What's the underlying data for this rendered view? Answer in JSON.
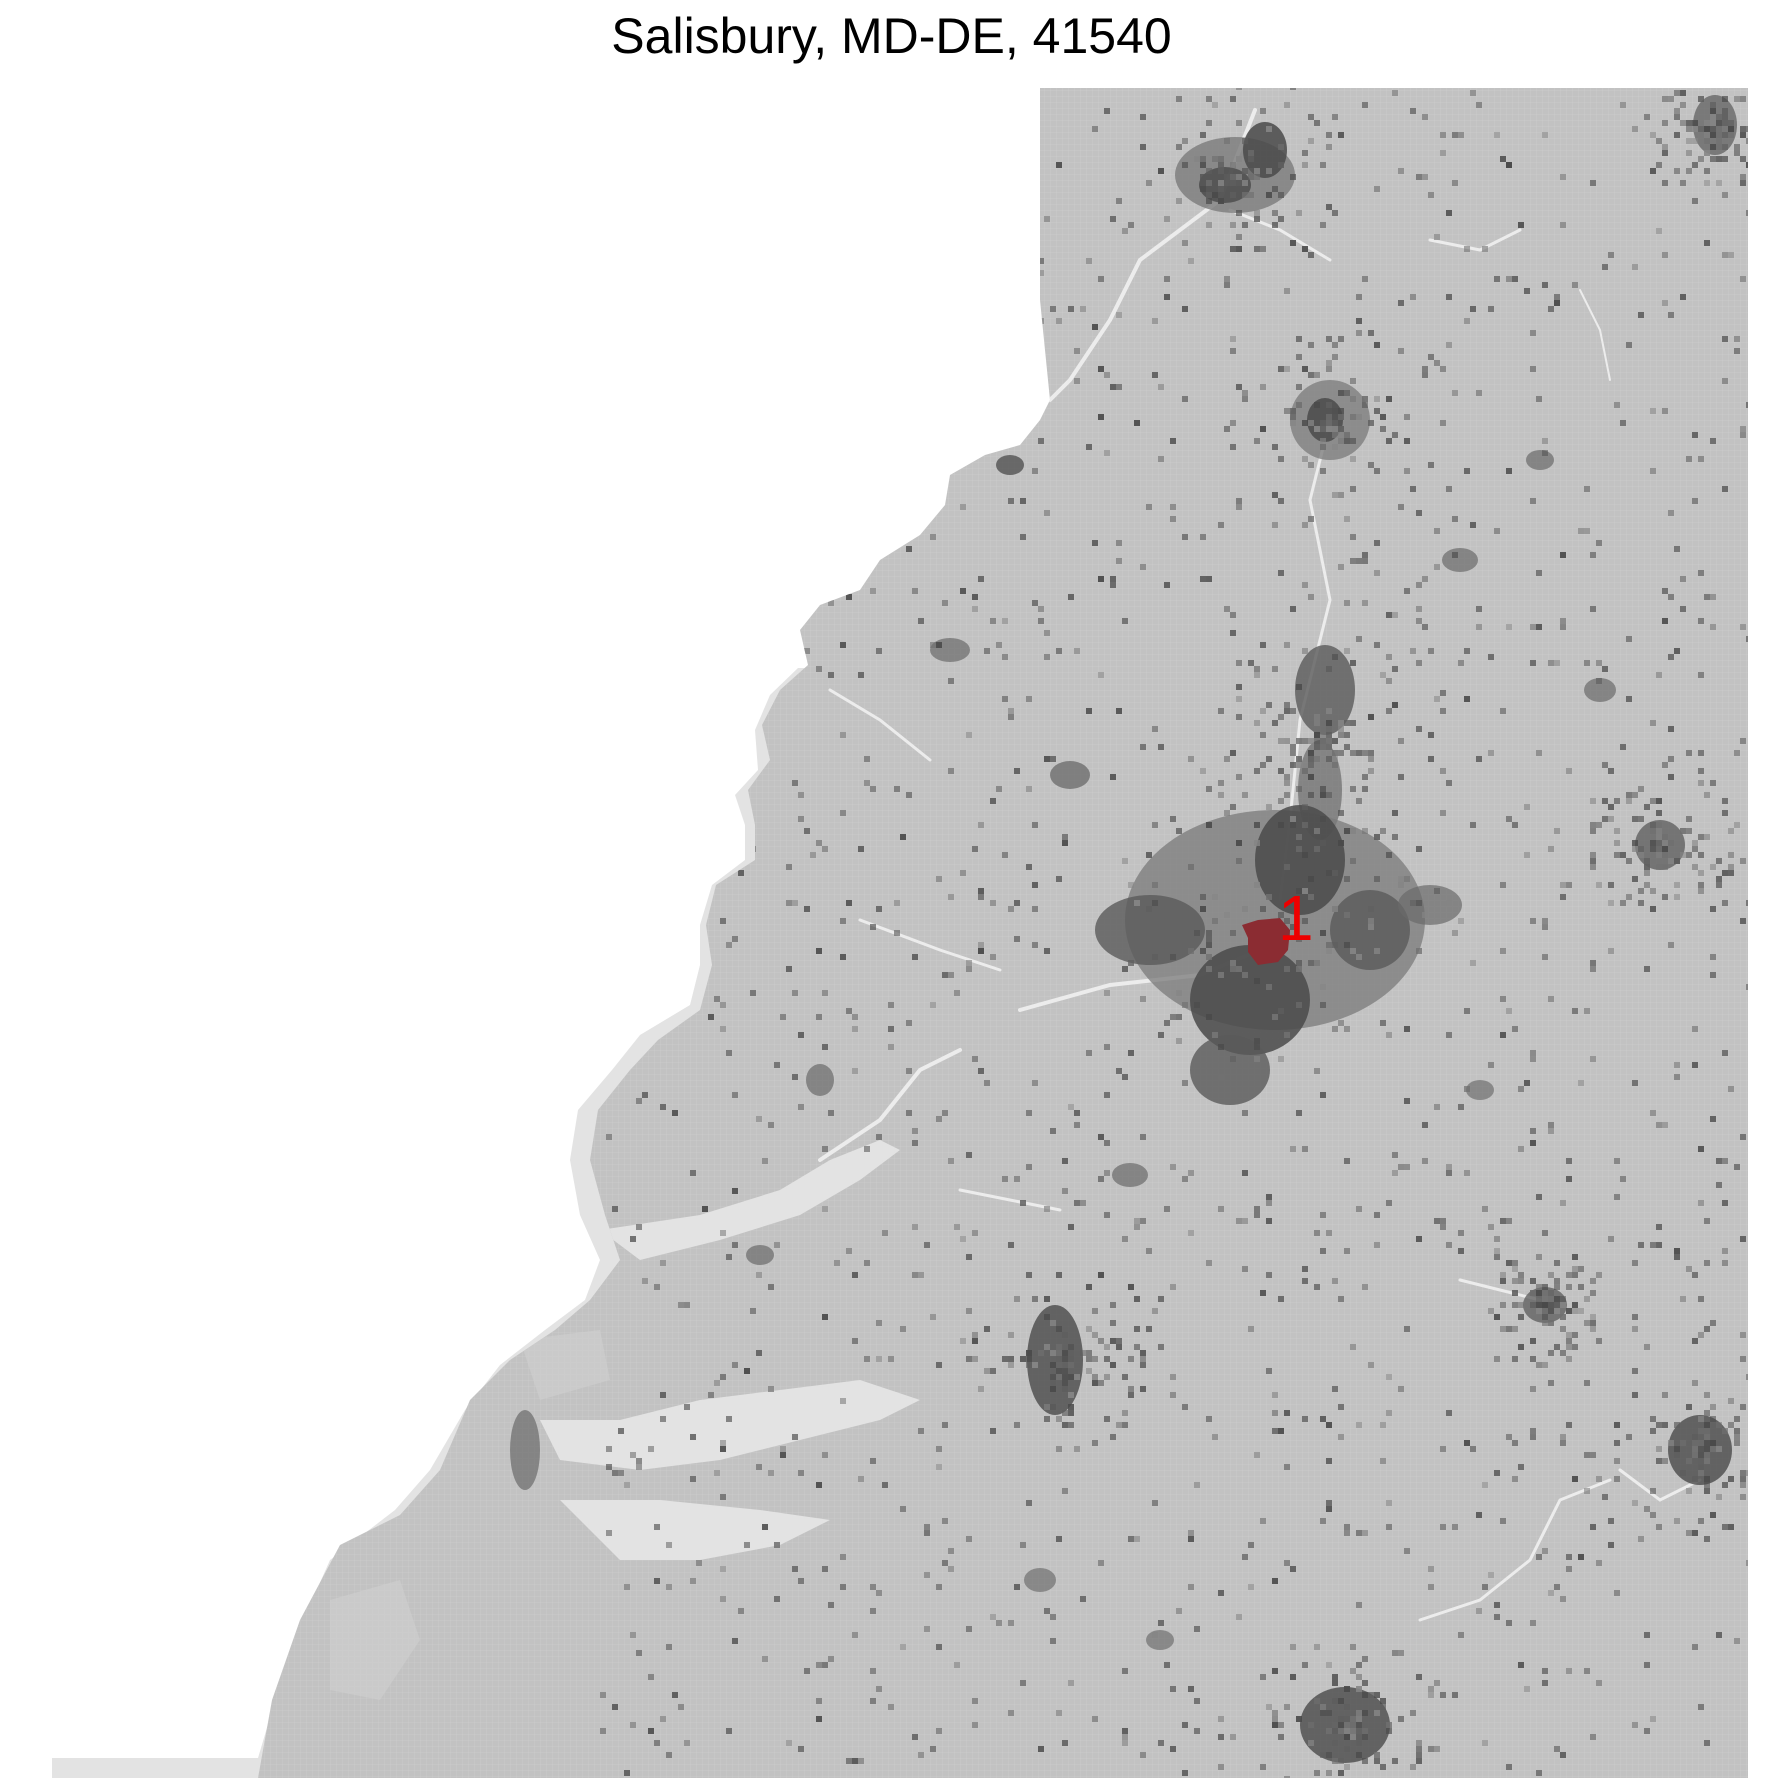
{
  "title": "Salisbury, MD-DE, 41540",
  "markers": [
    {
      "label": "1"
    }
  ],
  "colors": {
    "background": "#ffffff",
    "water_shallow": "#e3e3e3",
    "land": "#c2c2c2",
    "land_light": "#cdcdcd",
    "developed": "#4a4a4a",
    "developed_medium": "#7a7a7a",
    "road": "#e8e8e8",
    "marker_fill": "#8b2c32",
    "marker_label": "#ee0000"
  }
}
